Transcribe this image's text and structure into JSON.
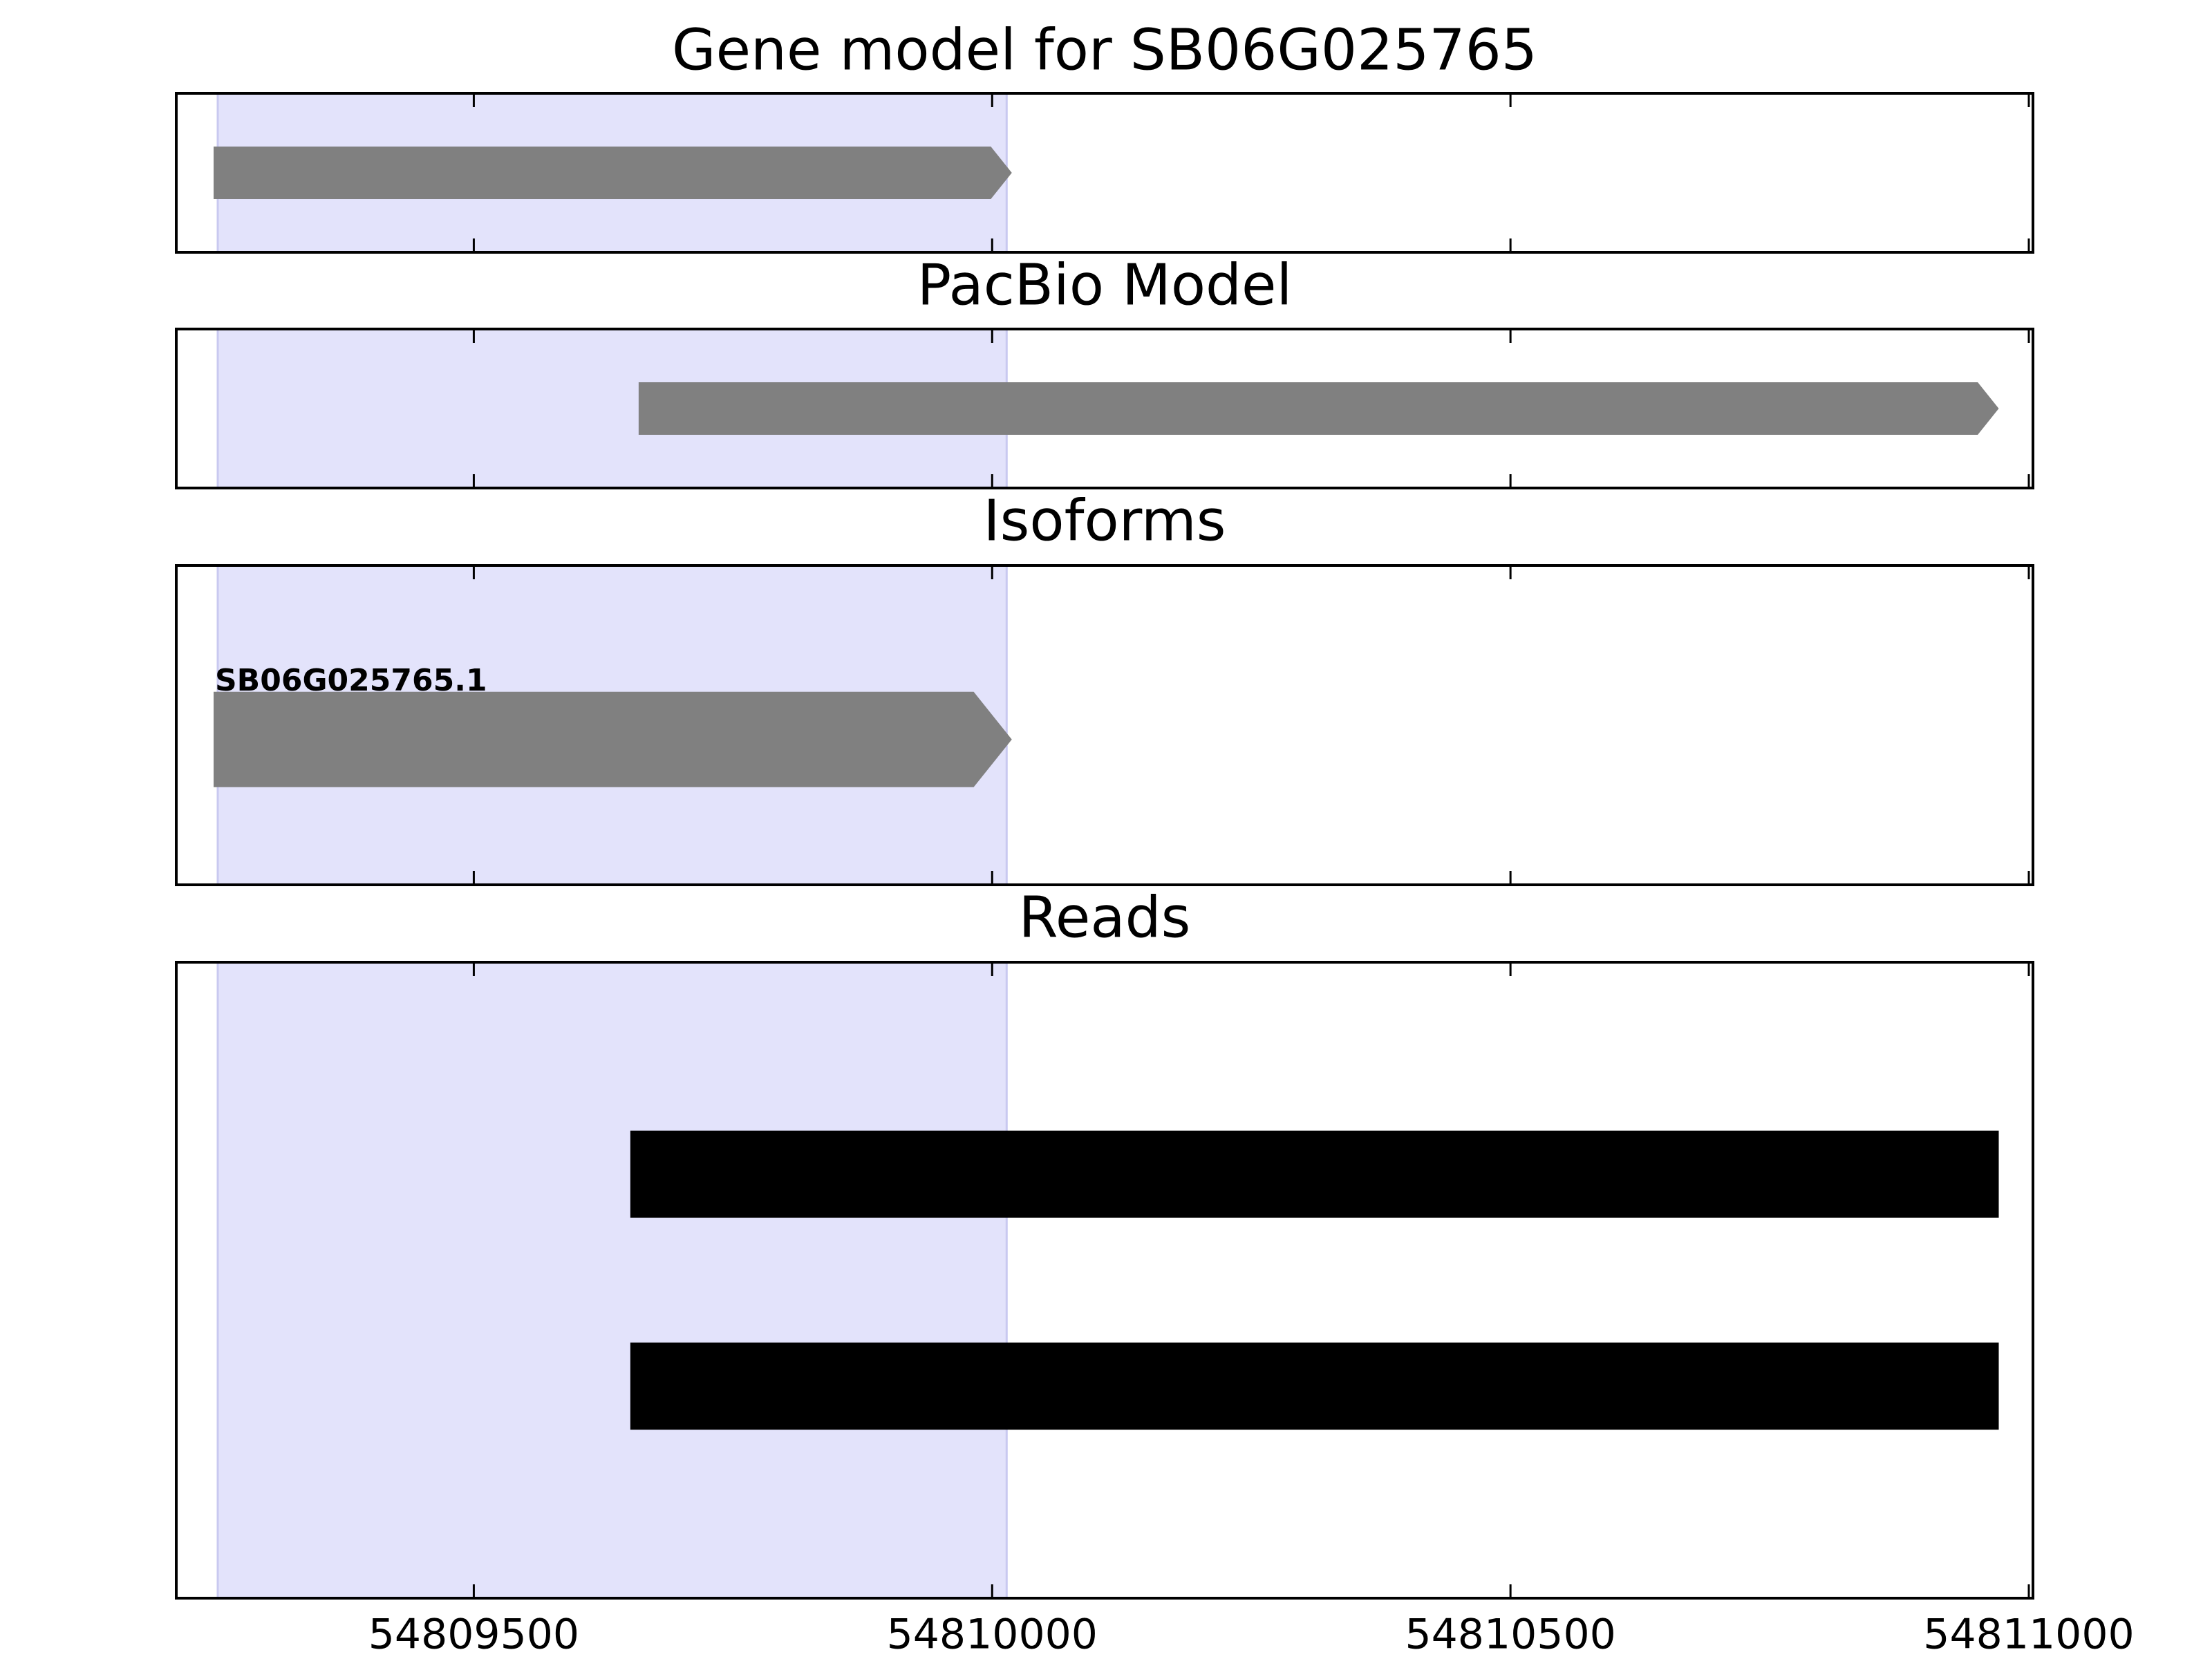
{
  "chart_data": [
    {
      "type": "track",
      "title": "Gene model for SB06G025765",
      "xlim": [
        54809213,
        54811004
      ],
      "xticks": [
        54809500,
        54810000,
        54810500,
        54811000
      ],
      "highlight": [
        54809253,
        54810014
      ],
      "highlight_color": "#e3e3fb",
      "features": [
        {
          "start": 54809249,
          "end": 54810019,
          "shape": "arrow",
          "color": "#808080"
        }
      ]
    },
    {
      "type": "track",
      "title": "PacBio Model",
      "xlim": [
        54809213,
        54811004
      ],
      "xticks": [
        54809500,
        54810000,
        54810500,
        54811000
      ],
      "highlight": [
        54809253,
        54810014
      ],
      "highlight_color": "#e3e3fb",
      "features": [
        {
          "start": 54809659,
          "end": 54810971,
          "shape": "arrow",
          "color": "#808080"
        }
      ]
    },
    {
      "type": "track",
      "title": "Isoforms",
      "xlim": [
        54809213,
        54811004
      ],
      "xticks": [
        54809500,
        54810000,
        54810500,
        54811000
      ],
      "highlight": [
        54809253,
        54810014
      ],
      "highlight_color": "#e3e3fb",
      "features": [
        {
          "name": "SB06G025765.1",
          "start": 54809249,
          "end": 54810019,
          "shape": "arrow",
          "color": "#808080"
        }
      ]
    },
    {
      "type": "track",
      "title": "Reads",
      "xlim": [
        54809213,
        54811004
      ],
      "xticks": [
        54809500,
        54810000,
        54810500,
        54811000
      ],
      "highlight": [
        54809253,
        54810014
      ],
      "highlight_color": "#e3e3fb",
      "features": [
        {
          "start": 54809651,
          "end": 54810971,
          "shape": "box",
          "color": "#000000"
        },
        {
          "start": 54809651,
          "end": 54810971,
          "shape": "box",
          "color": "#000000"
        }
      ]
    }
  ]
}
